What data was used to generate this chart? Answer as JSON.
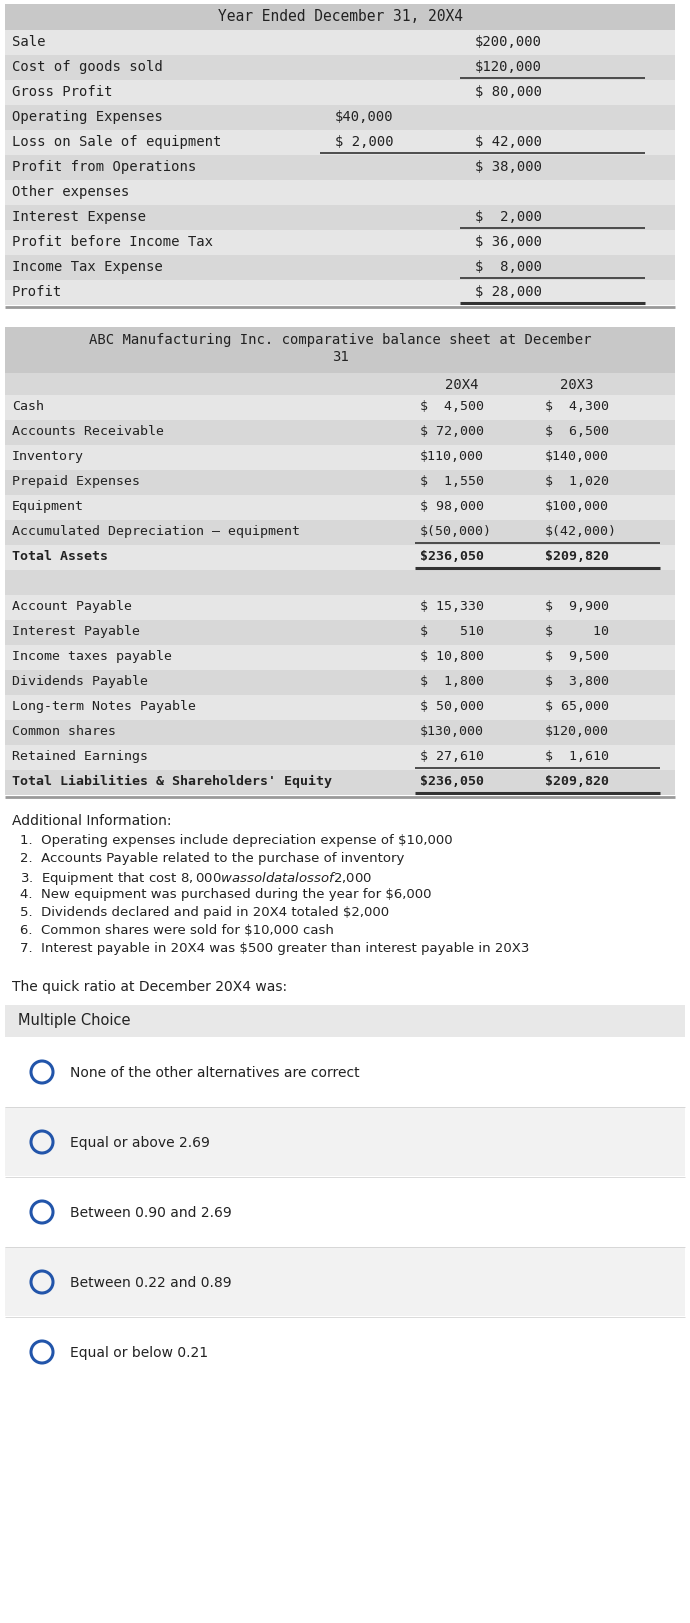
{
  "bg_color": "#ffffff",
  "table_bg": "#d8d8d8",
  "row_alt": "#e8e8e8",
  "title1": "Year Ended December 31, 20X4",
  "income_rows": [
    [
      "Sale",
      "",
      "$200,000"
    ],
    [
      "Cost of goods sold",
      "",
      "$120,000"
    ],
    [
      "Gross Profit",
      "",
      "$ 80,000"
    ],
    [
      "Operating Expenses",
      "$40,000",
      ""
    ],
    [
      "Loss on Sale of equipment",
      "$ 2,000",
      "$ 42,000"
    ],
    [
      "Profit from Operations",
      "",
      "$ 38,000"
    ],
    [
      "Other expenses",
      "",
      ""
    ],
    [
      "Interest Expense",
      "",
      "$  2,000"
    ],
    [
      "Profit before Income Tax",
      "",
      "$ 36,000"
    ],
    [
      "Income Tax Expense",
      "",
      "$  8,000"
    ],
    [
      "Profit",
      "",
      "$ 28,000"
    ]
  ],
  "title2_line1": "ABC Manufacturing Inc. comparative balance sheet at December",
  "title2_line2": "31",
  "assets_rows": [
    [
      "Cash",
      "$  4,500",
      "$  4,300"
    ],
    [
      "Accounts Receivable",
      "$ 72,000",
      "$  6,500"
    ],
    [
      "Inventory",
      "$110,000",
      "$140,000"
    ],
    [
      "Prepaid Expenses",
      "$  1,550",
      "$  1,020"
    ],
    [
      "Equipment",
      "$ 98,000",
      "$100,000"
    ],
    [
      "Accumulated Depreciation – equipment",
      "$(50,000)",
      "$(42,000)"
    ],
    [
      "Total Assets",
      "$236,050",
      "$209,820"
    ]
  ],
  "liab_rows": [
    [
      "Account Payable",
      "$ 15,330",
      "$  9,900"
    ],
    [
      "Interest Payable",
      "$    510",
      "$     10"
    ],
    [
      "Income taxes payable",
      "$ 10,800",
      "$  9,500"
    ],
    [
      "Dividends Payable",
      "$  1,800",
      "$  3,800"
    ],
    [
      "Long-term Notes Payable",
      "$ 50,000",
      "$ 65,000"
    ],
    [
      "Common shares",
      "$130,000",
      "$120,000"
    ],
    [
      "Retained Earnings",
      "$ 27,610",
      "$  1,610"
    ],
    [
      "Total Liabilities & Shareholders' Equity",
      "$236,050",
      "$209,820"
    ]
  ],
  "additional_info_title": "Additional Information:",
  "additional_info": [
    "1.  Operating expenses include depreciation expense of $10,000",
    "2.  Accounts Payable related to the purchase of inventory",
    "3.  Equipment that cost $8,000 was sold at a loss of $2,000",
    "4.  New equipment was purchased during the year for $6,000",
    "5.  Dividends declared and paid in 20X4 totaled $2,000",
    "6.  Common shares were sold for $10,000 cash",
    "7.  Interest payable in 20X4 was $500 greater than interest payable in 20X3"
  ],
  "quick_ratio_text": "The quick ratio at December 20X4 was:",
  "multiple_choice_title": "Multiple Choice",
  "choices": [
    "None of the other alternatives are correct",
    "Equal or above 2.69",
    "Between 0.90 and 2.69",
    "Between 0.22 and 0.89",
    "Equal or below 0.21"
  ]
}
